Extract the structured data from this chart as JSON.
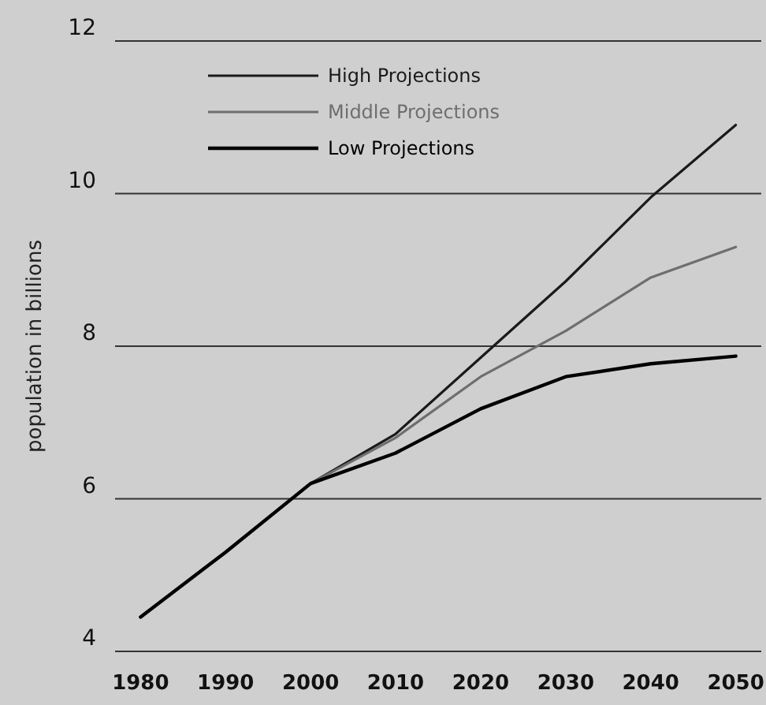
{
  "chart_data": {
    "type": "line",
    "ylabel": "population in billions",
    "x": [
      1980,
      1990,
      2000,
      2010,
      2020,
      2030,
      2040,
      2050
    ],
    "xlim": [
      1977,
      2053
    ],
    "xticks": [
      1980,
      1990,
      2000,
      2010,
      2020,
      2030,
      2040,
      2050
    ],
    "ylim": [
      4,
      12
    ],
    "yticks": [
      4,
      6,
      8,
      10,
      12
    ],
    "grid": "y",
    "legend": "top left",
    "line_style": "solid",
    "series": [
      {
        "name": "High Projections",
        "color": "#1a1a1a",
        "values": [
          4.45,
          5.3,
          6.2,
          6.85,
          7.85,
          8.85,
          9.95,
          10.9
        ]
      },
      {
        "name": "Middle Projections",
        "color": "#6e6e6e",
        "values": [
          4.45,
          5.3,
          6.2,
          6.8,
          7.6,
          8.2,
          8.9,
          9.3
        ]
      },
      {
        "name": "Low Projections",
        "color": "#000000",
        "values": [
          4.45,
          5.3,
          6.2,
          6.6,
          7.18,
          7.6,
          7.77,
          7.87
        ]
      }
    ]
  }
}
